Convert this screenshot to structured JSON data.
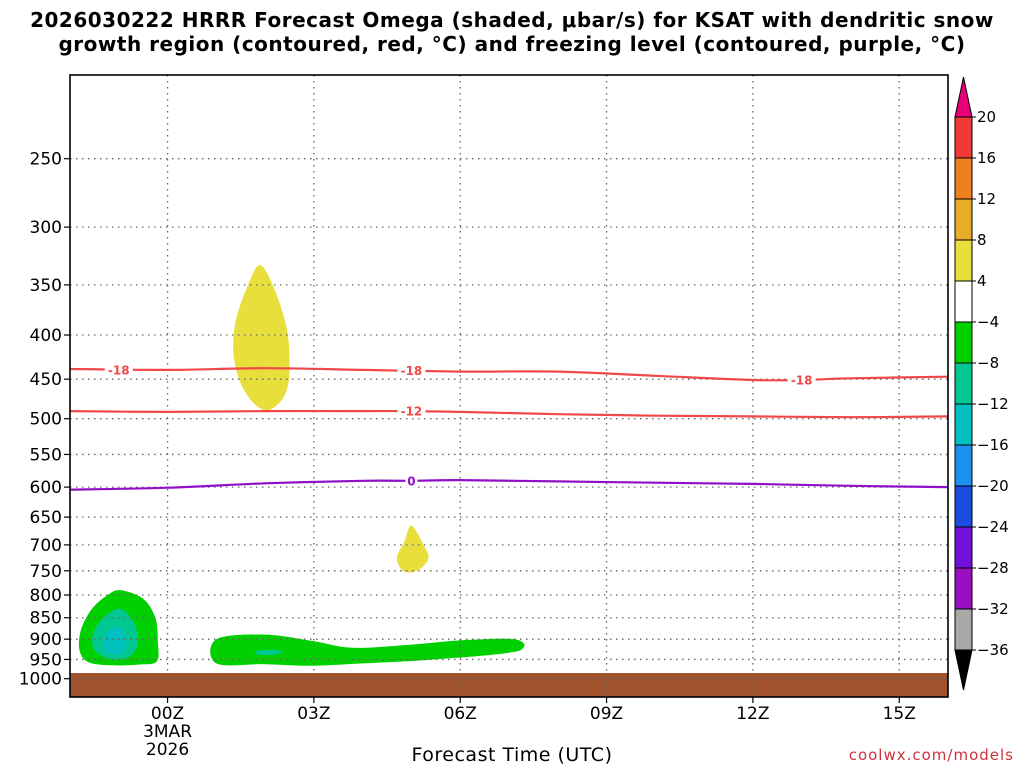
{
  "title_line1": "2026030222 HRRR Forecast Omega (shaded, μbar/s) for KSAT with dendritic snow",
  "title_line2": "growth region (contoured, red, °C) and freezing level (contoured, purple, °C)",
  "xlabel": "Forecast Time (UTC)",
  "credit": "coolwx.com/models",
  "chart_data": {
    "type": "contour",
    "x_unit": "forecast hour from 00Z 3MAR2026",
    "xlim": [
      -2,
      16
    ],
    "y_unit": "pressure (hPa)",
    "y_scale": "log",
    "ylim": [
      1050,
      200
    ],
    "x_ticks": [
      {
        "value": 0,
        "label": "00Z",
        "sub1": "3MAR",
        "sub2": "2026"
      },
      {
        "value": 3,
        "label": "03Z"
      },
      {
        "value": 6,
        "label": "06Z"
      },
      {
        "value": 9,
        "label": "09Z"
      },
      {
        "value": 12,
        "label": "12Z"
      },
      {
        "value": 15,
        "label": "15Z"
      }
    ],
    "y_ticks": [
      250,
      300,
      350,
      400,
      450,
      500,
      550,
      600,
      650,
      700,
      750,
      800,
      850,
      900,
      950,
      1000
    ],
    "grid": true,
    "ground_pressure": 985,
    "colors": {
      "ground": "#a0522d",
      "snow_growth_contour": "#f04848",
      "freezing_level_contour": "#9010c8",
      "omega_yellow": "#e8df3c",
      "omega_green": "#00d000",
      "omega_teal": "#00c890",
      "omega_cyan": "#00c0c0"
    },
    "contours": [
      {
        "label": "-18",
        "color": "#f04848",
        "points": [
          [
            -2,
            438
          ],
          [
            0,
            439
          ],
          [
            2,
            437
          ],
          [
            4,
            439
          ],
          [
            6,
            441
          ],
          [
            8,
            441
          ],
          [
            10,
            446
          ],
          [
            12,
            451
          ],
          [
            13,
            451
          ],
          [
            14,
            449
          ],
          [
            16,
            447
          ]
        ],
        "label_positions": [
          [
            -1,
            439
          ],
          [
            5,
            440
          ],
          [
            13,
            451
          ]
        ]
      },
      {
        "label": "-12",
        "color": "#f04848",
        "points": [
          [
            -2,
            490
          ],
          [
            0,
            491
          ],
          [
            2,
            490
          ],
          [
            4,
            490
          ],
          [
            5,
            490
          ],
          [
            6,
            491
          ],
          [
            8,
            494
          ],
          [
            10,
            496
          ],
          [
            12,
            497
          ],
          [
            14,
            498
          ],
          [
            16,
            497
          ]
        ],
        "label_positions": [
          [
            5,
            490
          ]
        ]
      },
      {
        "label": "0",
        "color": "#9010c8",
        "points": [
          [
            -2,
            604
          ],
          [
            0,
            601
          ],
          [
            2,
            594
          ],
          [
            4,
            590
          ],
          [
            5,
            590
          ],
          [
            6,
            589
          ],
          [
            8,
            591
          ],
          [
            10,
            593
          ],
          [
            12,
            595
          ],
          [
            14,
            598
          ],
          [
            16,
            600
          ]
        ],
        "label_positions": [
          [
            5,
            590
          ]
        ]
      }
    ],
    "omega_regions": [
      {
        "range": "4 to 8",
        "color": "#e8df3c",
        "points": [
          [
            1.9,
            332
          ],
          [
            2.2,
            355
          ],
          [
            2.45,
            395
          ],
          [
            2.5,
            440
          ],
          [
            2.4,
            470
          ],
          [
            2.1,
            488
          ],
          [
            1.8,
            482
          ],
          [
            1.5,
            455
          ],
          [
            1.35,
            420
          ],
          [
            1.4,
            385
          ],
          [
            1.65,
            350
          ]
        ]
      },
      {
        "range": "4 to 8",
        "color": "#e8df3c",
        "points": [
          [
            5.0,
            665
          ],
          [
            5.25,
            700
          ],
          [
            5.35,
            725
          ],
          [
            5.15,
            748
          ],
          [
            4.85,
            752
          ],
          [
            4.7,
            725
          ],
          [
            4.85,
            695
          ]
        ]
      },
      {
        "range": "-8 to -4",
        "color": "#00d000",
        "points": [
          [
            -0.95,
            790
          ],
          [
            -0.5,
            808
          ],
          [
            -0.25,
            850
          ],
          [
            -0.2,
            905
          ],
          [
            -0.22,
            955
          ],
          [
            -0.6,
            963
          ],
          [
            -1.1,
            965
          ],
          [
            -1.6,
            958
          ],
          [
            -1.8,
            930
          ],
          [
            -1.78,
            880
          ],
          [
            -1.55,
            830
          ],
          [
            -1.2,
            798
          ]
        ]
      },
      {
        "range": "-12 to -8",
        "color": "#00c890",
        "points": [
          [
            -1.0,
            830
          ],
          [
            -0.7,
            860
          ],
          [
            -0.6,
            905
          ],
          [
            -0.75,
            940
          ],
          [
            -1.05,
            950
          ],
          [
            -1.4,
            938
          ],
          [
            -1.55,
            905
          ],
          [
            -1.4,
            860
          ]
        ]
      },
      {
        "range": "-16 to -12",
        "color": "#00c0c0",
        "points": [
          [
            -1.05,
            870
          ],
          [
            -0.85,
            895
          ],
          [
            -0.9,
            930
          ],
          [
            -1.1,
            938
          ],
          [
            -1.3,
            925
          ],
          [
            -1.3,
            895
          ]
        ]
      },
      {
        "range": "-8 to -4",
        "color": "#00d000",
        "points": [
          [
            1.0,
            900
          ],
          [
            2.0,
            889
          ],
          [
            3.0,
            905
          ],
          [
            3.8,
            921
          ],
          [
            5.0,
            913
          ],
          [
            6.0,
            903
          ],
          [
            7.0,
            899
          ],
          [
            7.3,
            910
          ],
          [
            7.25,
            926
          ],
          [
            7.0,
            933
          ],
          [
            6.5,
            940
          ],
          [
            6.0,
            945
          ],
          [
            5.0,
            954
          ],
          [
            4.0,
            960
          ],
          [
            3.0,
            966
          ],
          [
            2.0,
            962
          ],
          [
            1.0,
            960
          ]
        ]
      },
      {
        "range": "-12 to -8",
        "color": "#00c890",
        "points": [
          [
            1.85,
            928
          ],
          [
            2.2,
            926
          ],
          [
            2.35,
            934
          ],
          [
            2.05,
            939
          ],
          [
            1.8,
            936
          ]
        ]
      }
    ],
    "colorbar": {
      "levels": [
        20,
        16,
        12,
        8,
        4,
        -4,
        -8,
        -12,
        -16,
        -20,
        -24,
        -28,
        -32,
        -36
      ],
      "colors": [
        "#e8007a",
        "#f03a3a",
        "#f07f20",
        "#e8ad28",
        "#e8df3c",
        "#ffffff",
        "#00d000",
        "#00c890",
        "#00c0c0",
        "#1e90f0",
        "#1a4ce0",
        "#7010d8",
        "#9a10c0",
        "#a8a8a8",
        "#000000"
      ]
    }
  }
}
